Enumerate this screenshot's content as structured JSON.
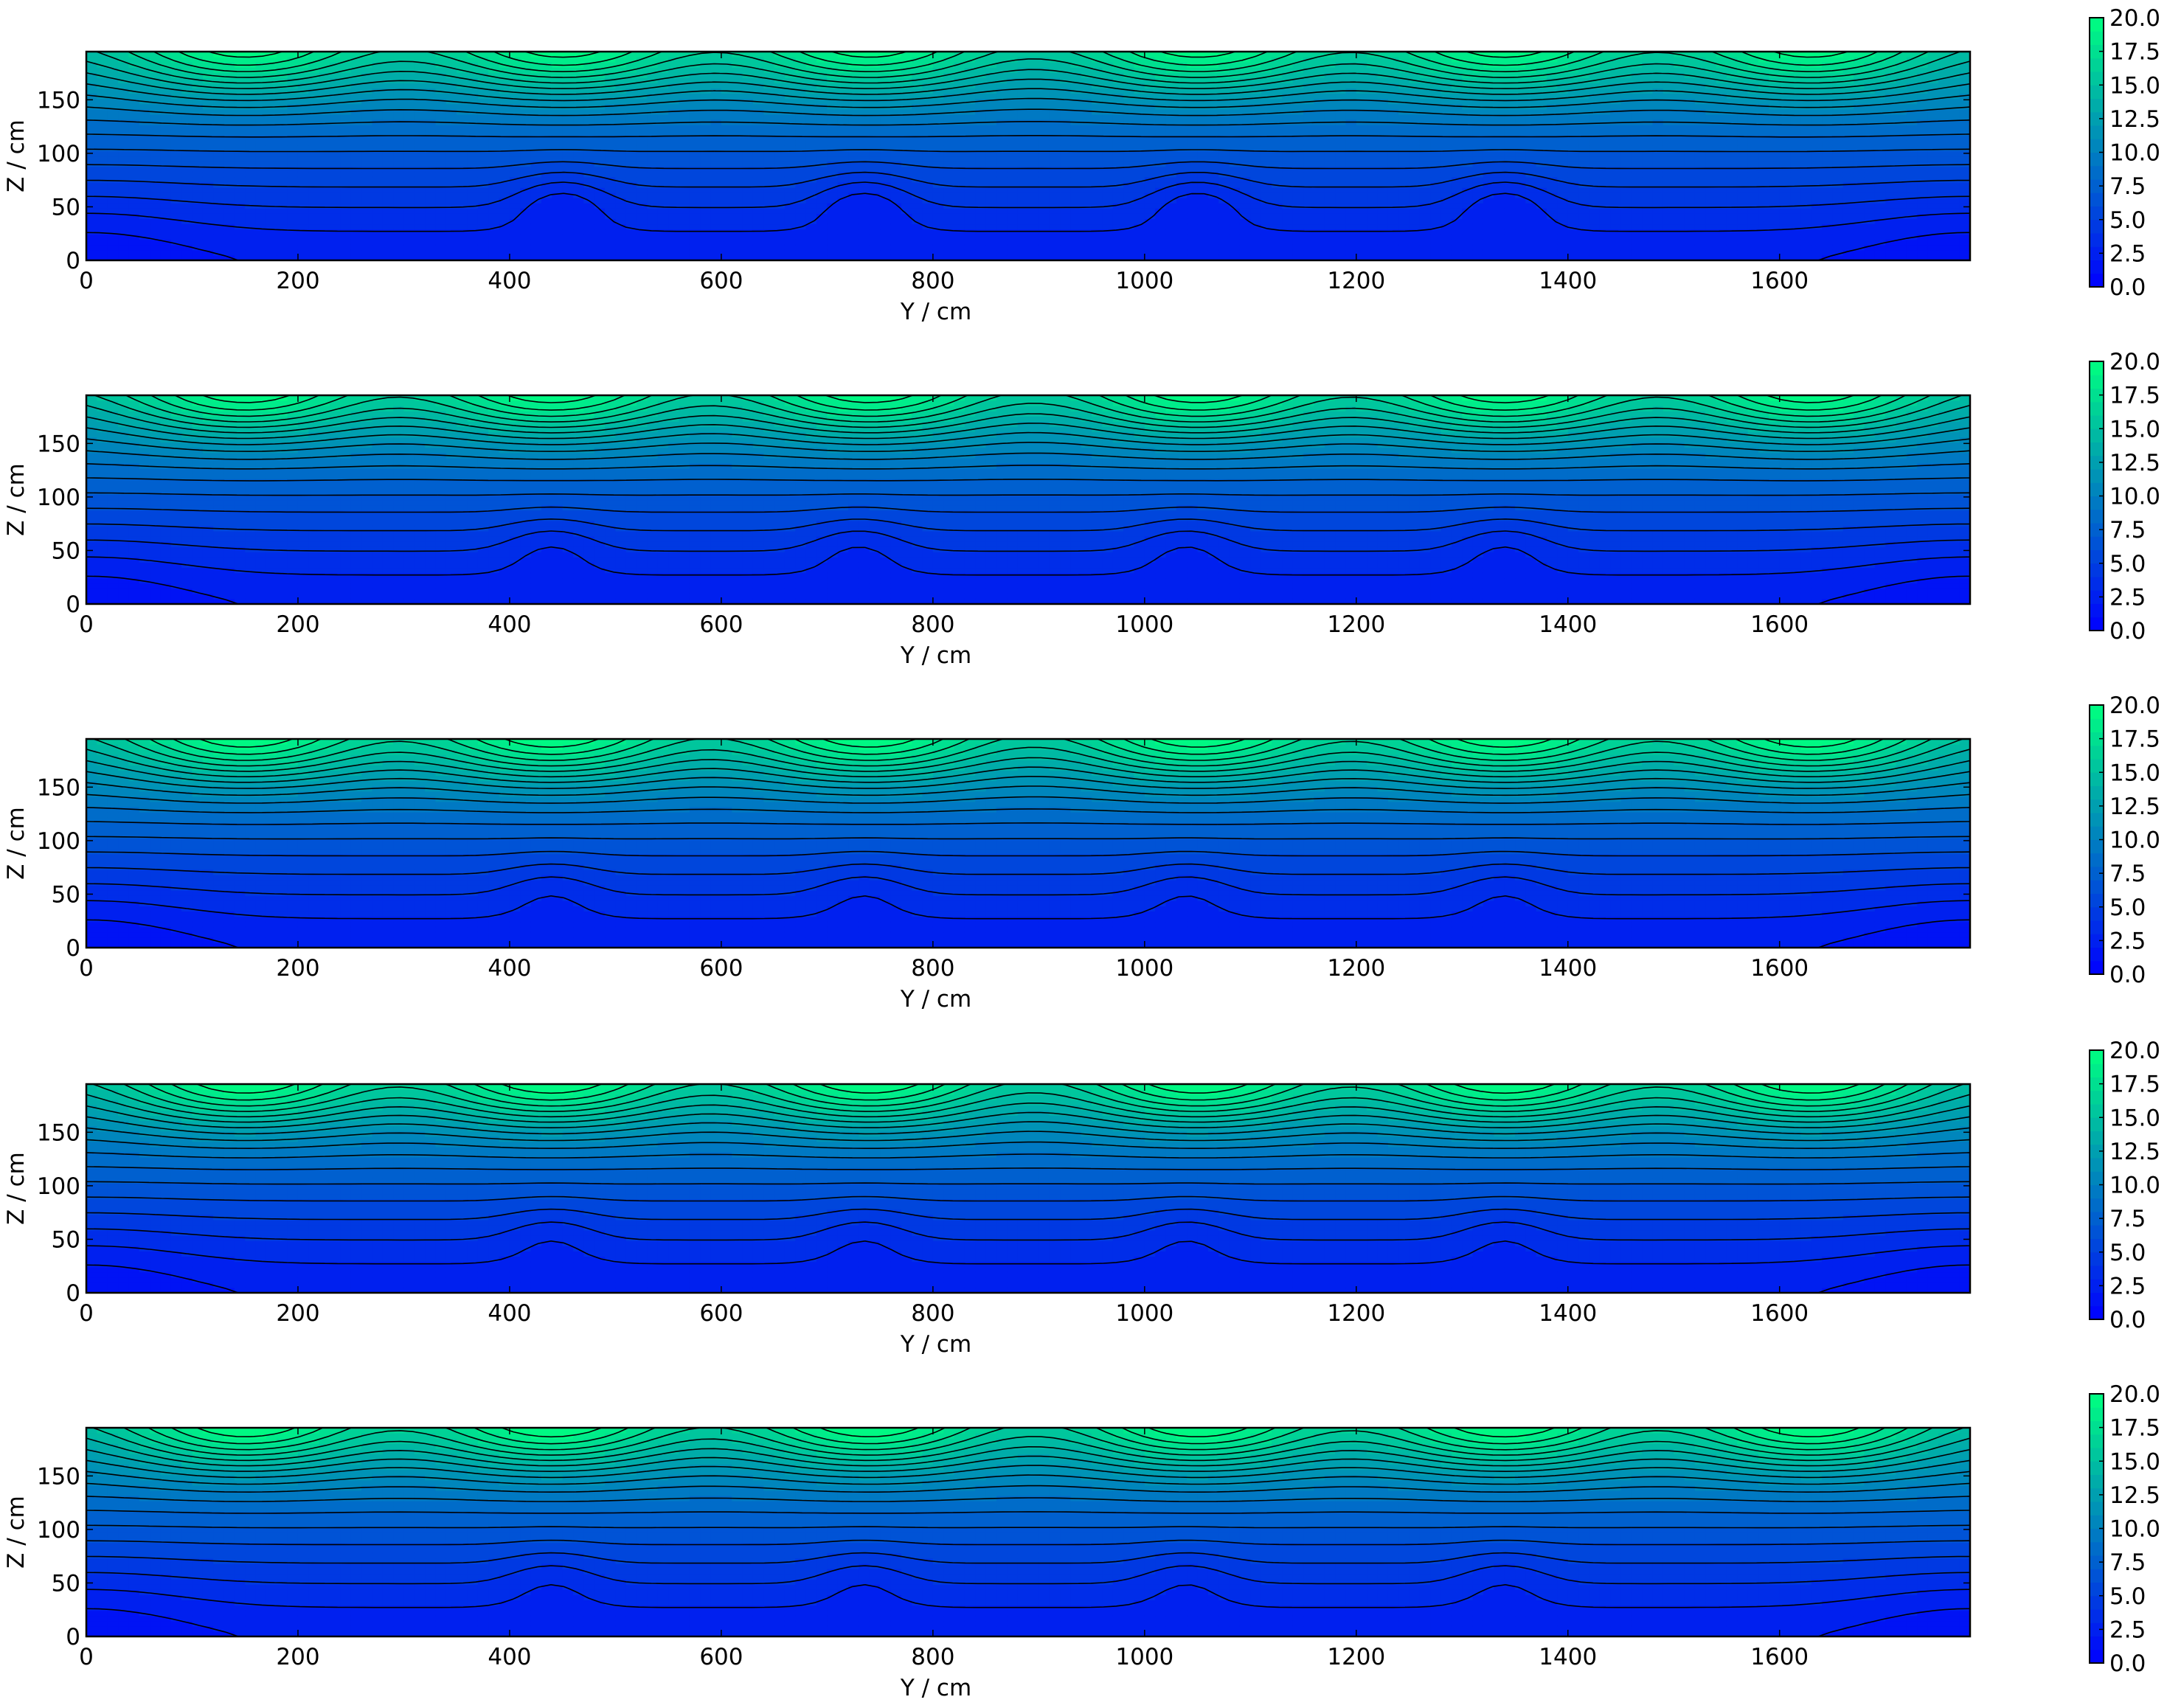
{
  "colors": {
    "colormap_low": "#0000ff",
    "colormap_high": "#00ff80",
    "contour_line": "#000000"
  },
  "chart_data": [
    {
      "type": "heatmap",
      "subtype": "filled-contour",
      "xlabel": "Y / cm",
      "ylabel": "Z / cm",
      "xlim": [
        0,
        1780
      ],
      "ylim": [
        0,
        195
      ],
      "xticks": [
        "0",
        "200",
        "400",
        "600",
        "800",
        "1000",
        "1200",
        "1400",
        "1600"
      ],
      "yticks": [
        "0",
        "50",
        "100",
        "150"
      ],
      "colorbar": {
        "min": 0,
        "max": 20,
        "ticks": [
          "0.0",
          "2.5",
          "5.0",
          "7.5",
          "10.0",
          "12.5",
          "15.0",
          "17.5",
          "20.0"
        ]
      },
      "hot_spots_y": [
        150,
        450,
        740,
        1050,
        1340,
        1630
      ],
      "peak_value": 19.5,
      "dip_x": [
        450,
        735,
        1050,
        1340
      ],
      "dip_depth": 45
    },
    {
      "type": "heatmap",
      "subtype": "filled-contour",
      "xlabel": "Y / cm",
      "ylabel": "Z / cm",
      "xlim": [
        0,
        1780
      ],
      "ylim": [
        0,
        195
      ],
      "xticks": [
        "0",
        "200",
        "400",
        "600",
        "800",
        "1000",
        "1200",
        "1400",
        "1600"
      ],
      "yticks": [
        "0",
        "50",
        "100",
        "150"
      ],
      "colorbar": {
        "min": 0,
        "max": 20,
        "ticks": [
          "0.0",
          "2.5",
          "5.0",
          "7.5",
          "10.0",
          "12.5",
          "15.0",
          "17.5",
          "20.0"
        ]
      },
      "hot_spots_y": [
        150,
        440,
        740,
        1050,
        1340,
        1630
      ],
      "peak_value": 19.7,
      "dip_x": [
        440,
        730,
        1040,
        1340
      ],
      "dip_depth": 30
    },
    {
      "type": "heatmap",
      "subtype": "filled-contour",
      "xlabel": "Y / cm",
      "ylabel": "Z / cm",
      "xlim": [
        0,
        1780
      ],
      "ylim": [
        0,
        195
      ],
      "xticks": [
        "0",
        "200",
        "400",
        "600",
        "800",
        "1000",
        "1200",
        "1400",
        "1600"
      ],
      "yticks": [
        "0",
        "50",
        "100",
        "150"
      ],
      "colorbar": {
        "min": 0,
        "max": 20,
        "ticks": [
          "0.0",
          "2.5",
          "5.0",
          "7.5",
          "10.0",
          "12.5",
          "15.0",
          "17.5",
          "20.0"
        ]
      },
      "hot_spots_y": [
        150,
        440,
        740,
        1050,
        1340,
        1630
      ],
      "peak_value": 19.8,
      "dip_x": [
        440,
        735,
        1040,
        1340
      ],
      "dip_depth": 25
    },
    {
      "type": "heatmap",
      "subtype": "filled-contour",
      "xlabel": "Y / cm",
      "ylabel": "Z / cm",
      "xlim": [
        0,
        1780
      ],
      "ylim": [
        0,
        195
      ],
      "xticks": [
        "0",
        "200",
        "400",
        "600",
        "800",
        "1000",
        "1200",
        "1400",
        "1600"
      ],
      "yticks": [
        "0",
        "50",
        "100",
        "150"
      ],
      "colorbar": {
        "min": 0,
        "max": 20,
        "ticks": [
          "0.0",
          "2.5",
          "5.0",
          "7.5",
          "10.0",
          "12.5",
          "15.0",
          "17.5",
          "20.0"
        ]
      },
      "hot_spots_y": [
        150,
        440,
        740,
        1050,
        1340,
        1630
      ],
      "peak_value": 19.9,
      "dip_x": [
        440,
        735,
        1040,
        1340
      ],
      "dip_depth": 25
    },
    {
      "type": "heatmap",
      "subtype": "filled-contour",
      "xlabel": "Y / cm",
      "ylabel": "Z / cm",
      "xlim": [
        0,
        1780
      ],
      "ylim": [
        0,
        195
      ],
      "xticks": [
        "0",
        "200",
        "400",
        "600",
        "800",
        "1000",
        "1200",
        "1400",
        "1600"
      ],
      "yticks": [
        "0",
        "50",
        "100",
        "150"
      ],
      "colorbar": {
        "min": 0,
        "max": 20,
        "ticks": [
          "0.0",
          "2.5",
          "5.0",
          "7.5",
          "10.0",
          "12.5",
          "15.0",
          "17.5",
          "20.0"
        ]
      },
      "hot_spots_y": [
        150,
        440,
        740,
        1050,
        1340,
        1630
      ],
      "peak_value": 19.9,
      "dip_x": [
        440,
        735,
        1040,
        1340
      ],
      "dip_depth": 25
    }
  ]
}
